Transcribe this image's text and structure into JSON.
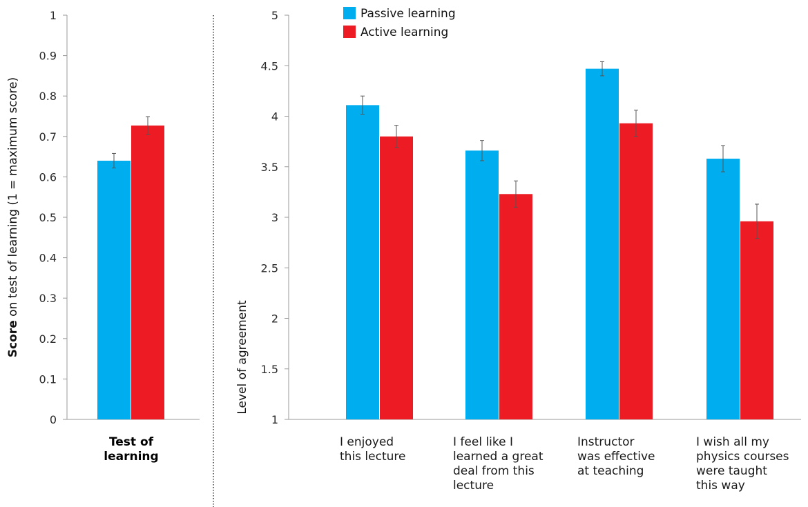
{
  "colors": {
    "passive": "#00aeef",
    "active": "#ed1c24",
    "axis": "#999999",
    "errorbar": "#555555",
    "divider": "#333333"
  },
  "legend": {
    "passive": "Passive learning",
    "active": "Active learning"
  },
  "chart_data": [
    {
      "type": "bar",
      "title": "",
      "ylabel_bold": "Score",
      "ylabel_rest": " on test of learning (1 = maximum score)",
      "ylim": [
        0,
        1
      ],
      "yticks": [
        "0",
        "0.1",
        "0.2",
        "0.3",
        "0.4",
        "0.5",
        "0.6",
        "0.7",
        "0.8",
        "0.9",
        "1"
      ],
      "categories": [
        [
          "Test of",
          "learning"
        ]
      ],
      "series": [
        {
          "name": "Passive learning",
          "values": [
            0.64
          ],
          "errors": [
            0.018
          ]
        },
        {
          "name": "Active learning",
          "values": [
            0.727
          ],
          "errors": [
            0.022
          ]
        }
      ]
    },
    {
      "type": "bar",
      "title": "",
      "ylabel": "Level of agreement",
      "ylim": [
        1,
        5
      ],
      "yticks": [
        "1",
        "1.5",
        "2",
        "2.5",
        "3",
        "3.5",
        "4",
        "4.5",
        "5"
      ],
      "categories": [
        [
          "I enjoyed",
          "this lecture"
        ],
        [
          "I feel like I",
          "learned a great",
          "deal from this",
          "lecture"
        ],
        [
          "Instructor",
          "was effective",
          "at teaching"
        ],
        [
          "I wish all my",
          "physics courses",
          "were taught",
          "this way"
        ]
      ],
      "series": [
        {
          "name": "Passive learning",
          "values": [
            4.11,
            3.66,
            4.47,
            3.58
          ],
          "errors": [
            0.09,
            0.1,
            0.07,
            0.13
          ]
        },
        {
          "name": "Active learning",
          "values": [
            3.8,
            3.23,
            3.93,
            2.96
          ],
          "errors": [
            0.11,
            0.13,
            0.13,
            0.17
          ]
        }
      ]
    }
  ]
}
